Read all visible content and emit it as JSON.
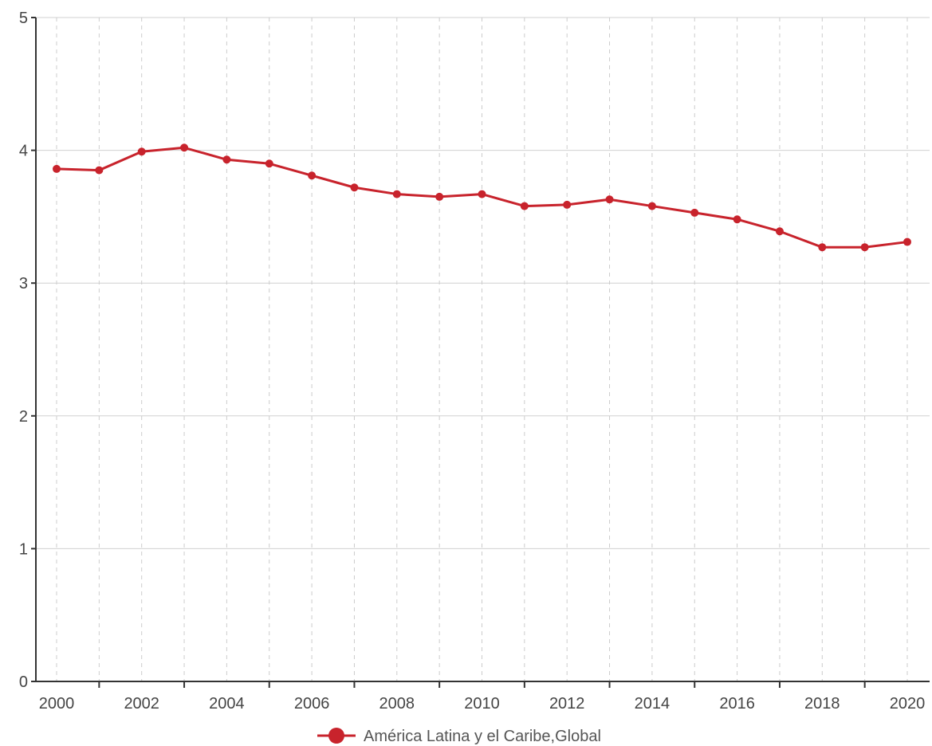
{
  "chart_data": {
    "type": "line",
    "title": "",
    "xlabel": "",
    "ylabel": "",
    "x": [
      2000,
      2001,
      2002,
      2003,
      2004,
      2005,
      2006,
      2007,
      2008,
      2009,
      2010,
      2011,
      2012,
      2013,
      2014,
      2015,
      2016,
      2017,
      2018,
      2019,
      2020
    ],
    "x_tick_labels": [
      "2000",
      "2002",
      "2004",
      "2006",
      "2008",
      "2010",
      "2012",
      "2014",
      "2016",
      "2018",
      "2020"
    ],
    "y_tick_labels": [
      "0",
      "1",
      "2",
      "3",
      "4",
      "5"
    ],
    "ylim": [
      0,
      5
    ],
    "xlim": [
      2000,
      2020
    ],
    "grid": {
      "horizontal": "solid",
      "vertical": "dashed"
    },
    "legend_position": "bottom-center",
    "series": [
      {
        "name": "América Latina y el Caribe,Global",
        "color": "#c8232c",
        "values": [
          3.86,
          3.85,
          3.99,
          4.02,
          3.93,
          3.9,
          3.81,
          3.72,
          3.67,
          3.65,
          3.67,
          3.58,
          3.59,
          3.63,
          3.58,
          3.53,
          3.48,
          3.39,
          3.27,
          3.27,
          3.31
        ]
      }
    ]
  }
}
